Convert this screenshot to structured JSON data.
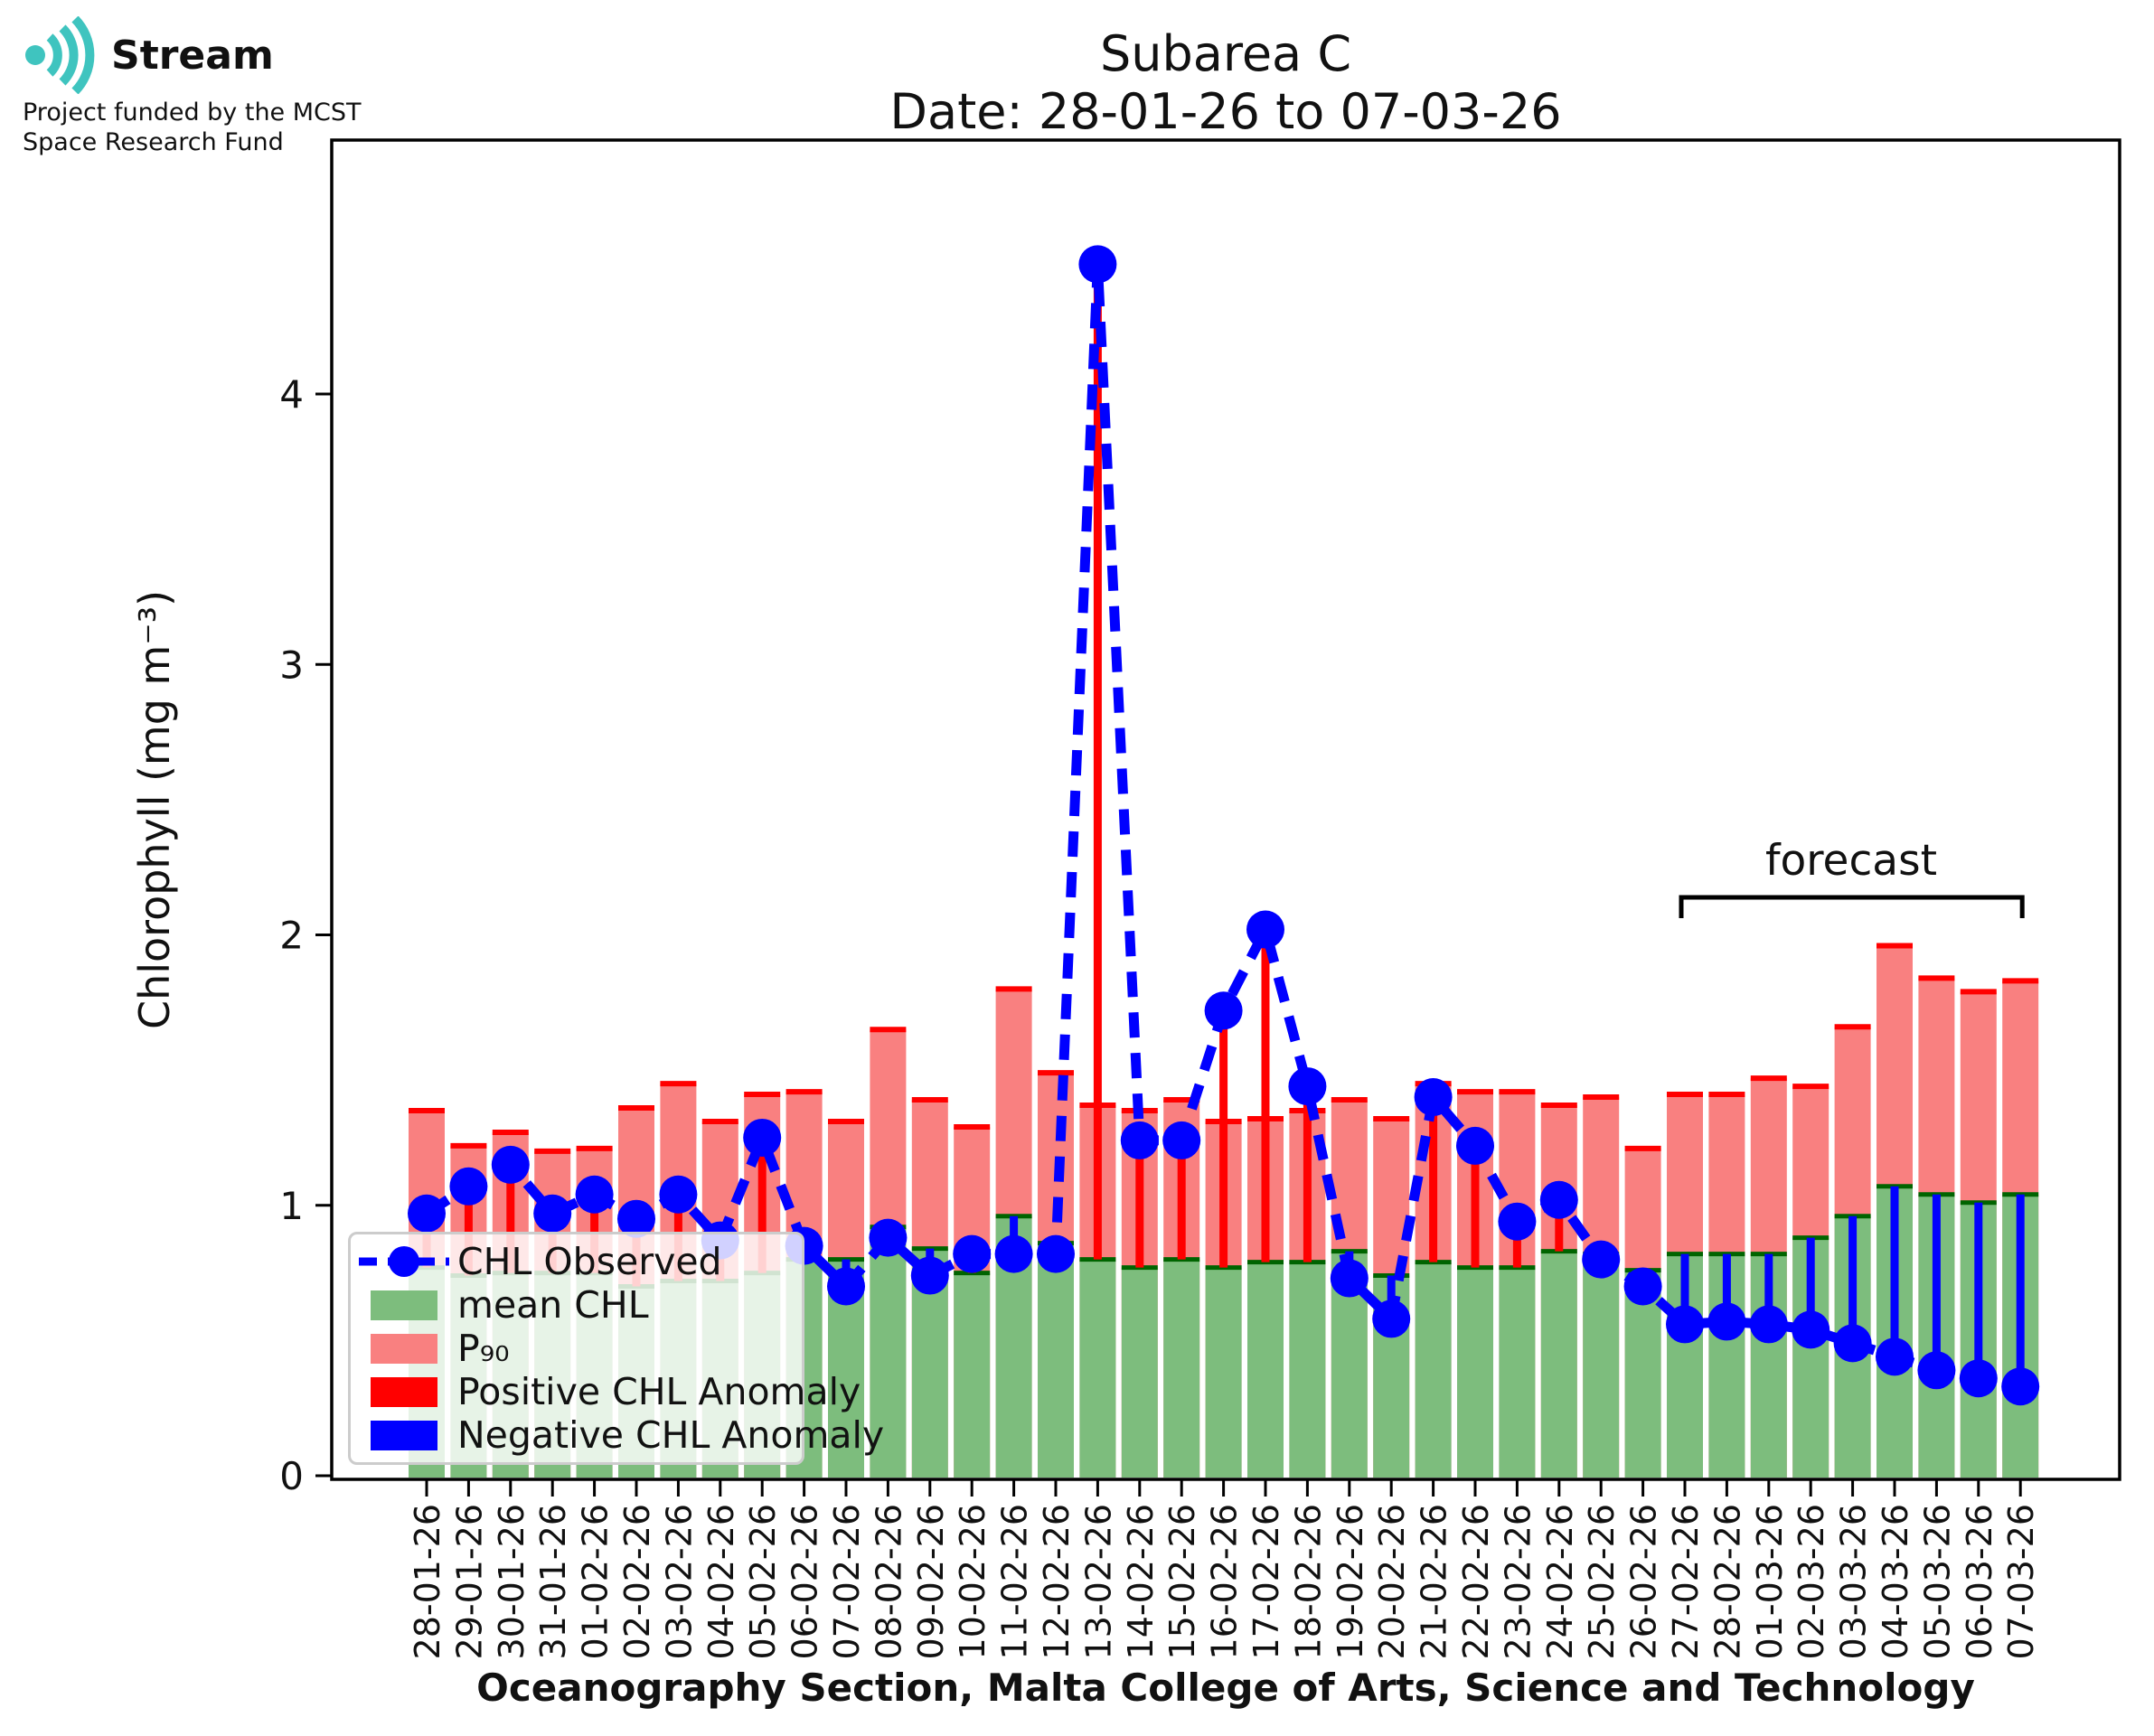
{
  "logo": {
    "brand": "Stream",
    "subtitle_line1": "Project funded by the MCST",
    "subtitle_line2": "Space Research Fund",
    "icon_color": "#3fc4bf"
  },
  "chart_data": {
    "type": "bar",
    "title": "Subarea C",
    "subtitle": "Date: 28-01-26 to 07-03-26",
    "xlabel": "Oceanography Section, Malta College of Arts, Science and Technology",
    "ylabel": "Chlorophyll (mg m⁻³)",
    "ylim": [
      0,
      4.94
    ],
    "yticks": [
      0,
      1,
      2,
      3,
      4
    ],
    "grid": false,
    "legend_position": "lower left",
    "legend": [
      "CHL Observed",
      "mean CHL",
      "P₉₀",
      "Positive CHL Anomaly",
      "Negative CHL Anomaly"
    ],
    "forecast": {
      "label": "forecast",
      "start_index": 30,
      "end_index": 38
    },
    "categories": [
      "28-01-26",
      "29-01-26",
      "30-01-26",
      "31-01-26",
      "01-02-26",
      "02-02-26",
      "03-02-26",
      "04-02-26",
      "05-02-26",
      "06-02-26",
      "07-02-26",
      "08-02-26",
      "09-02-26",
      "10-02-26",
      "11-02-26",
      "12-02-26",
      "13-02-26",
      "14-02-26",
      "15-02-26",
      "16-02-26",
      "17-02-26",
      "18-02-26",
      "19-02-26",
      "20-02-26",
      "21-02-26",
      "22-02-26",
      "23-02-26",
      "24-02-26",
      "25-02-26",
      "26-02-26",
      "27-02-26",
      "28-02-26",
      "01-03-26",
      "02-03-26",
      "03-03-26",
      "04-03-26",
      "05-03-26",
      "06-03-26",
      "07-03-26"
    ],
    "series": [
      {
        "name": "CHL Observed",
        "type": "line",
        "style": "dashed",
        "color": "#0000ff",
        "values": [
          0.97,
          1.07,
          1.15,
          0.97,
          1.04,
          0.95,
          1.04,
          0.87,
          1.25,
          0.85,
          0.7,
          0.88,
          0.74,
          0.82,
          0.82,
          0.82,
          4.48,
          1.24,
          1.24,
          1.72,
          2.02,
          1.44,
          0.73,
          0.58,
          1.4,
          1.22,
          0.94,
          1.02,
          0.8,
          0.7,
          0.56,
          0.57,
          0.56,
          0.54,
          0.49,
          0.44,
          0.39,
          0.36,
          0.33
        ]
      },
      {
        "name": "mean CHL",
        "type": "bar",
        "color": "#7dbd7d",
        "edge_color": "#006400",
        "values": [
          0.77,
          0.74,
          0.75,
          0.75,
          0.75,
          0.7,
          0.72,
          0.72,
          0.75,
          0.8,
          0.8,
          0.92,
          0.84,
          0.75,
          0.96,
          0.86,
          0.8,
          0.77,
          0.8,
          0.77,
          0.79,
          0.79,
          0.83,
          0.74,
          0.79,
          0.77,
          0.77,
          0.83,
          0.82,
          0.76,
          0.82,
          0.82,
          0.82,
          0.88,
          0.96,
          1.07,
          1.04,
          1.01,
          1.04
        ]
      },
      {
        "name": "P90",
        "type": "bar",
        "color": "#f98080",
        "edge_color": "#ff0000",
        "values": [
          1.35,
          1.22,
          1.27,
          1.2,
          1.21,
          1.36,
          1.45,
          1.31,
          1.41,
          1.42,
          1.31,
          1.65,
          1.39,
          1.29,
          1.8,
          1.49,
          1.37,
          1.35,
          1.39,
          1.31,
          1.32,
          1.35,
          1.39,
          1.32,
          1.45,
          1.42,
          1.42,
          1.37,
          1.4,
          1.21,
          1.41,
          1.41,
          1.47,
          1.44,
          1.66,
          1.96,
          1.84,
          1.79,
          1.83
        ]
      },
      {
        "name": "Positive CHL Anomaly",
        "type": "anomaly-positive",
        "color": "#ff0000"
      },
      {
        "name": "Negative CHL Anomaly",
        "type": "anomaly-negative",
        "color": "#0000ff"
      }
    ]
  }
}
